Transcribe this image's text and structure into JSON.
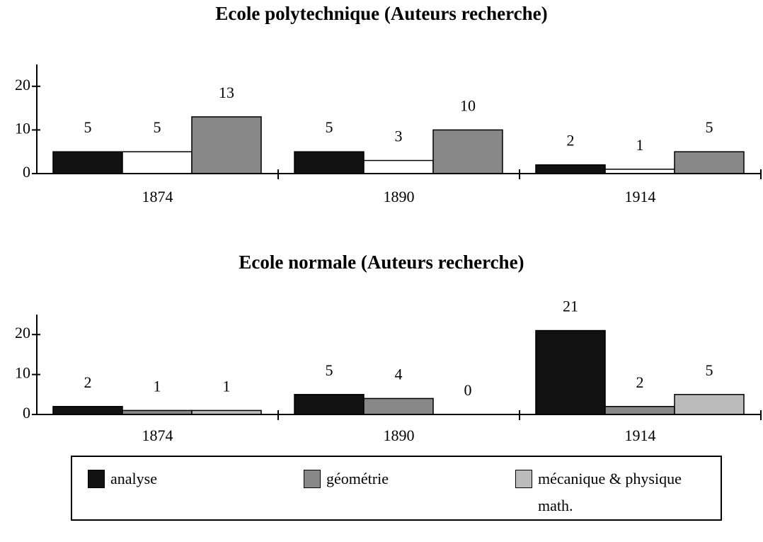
{
  "chart_data": [
    {
      "type": "bar",
      "title": "Ecole polytechnique (Auteurs recherche)",
      "categories": [
        "1874",
        "1890",
        "1914"
      ],
      "series": [
        {
          "color": "#111111",
          "values": [
            5,
            5,
            2
          ]
        },
        {
          "color": "#ffffff",
          "values": [
            5,
            3,
            1
          ]
        },
        {
          "color": "#888888",
          "values": [
            13,
            10,
            5
          ]
        }
      ],
      "ylim": [
        0,
        25
      ],
      "yticks": [
        0,
        10,
        20
      ],
      "grid": false
    },
    {
      "type": "bar",
      "title": "Ecole normale (Auteurs recherche)",
      "categories": [
        "1874",
        "1890",
        "1914"
      ],
      "series": [
        {
          "color": "#111111",
          "values": [
            2,
            5,
            21
          ]
        },
        {
          "color": "#888888",
          "values": [
            1,
            4,
            2
          ]
        },
        {
          "color": "#bbbbbb",
          "values": [
            1,
            0,
            5
          ]
        }
      ],
      "ylim": [
        0,
        25
      ],
      "yticks": [
        0,
        10,
        20
      ],
      "grid": false
    }
  ],
  "legend": [
    {
      "name": "analyse",
      "color": "#111111"
    },
    {
      "name": "géométrie",
      "color": "#888888"
    },
    {
      "name": "mécanique & physique math.",
      "color": "#bbbbbb"
    }
  ]
}
